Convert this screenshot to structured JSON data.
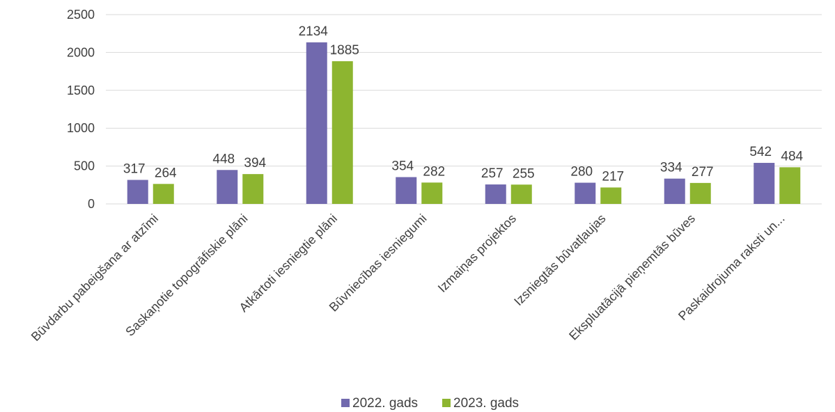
{
  "chart_data": {
    "type": "bar",
    "title": "",
    "xlabel": "",
    "ylabel": "",
    "ylim": [
      0,
      2500
    ],
    "yticks": [
      0,
      500,
      1000,
      1500,
      2000,
      2500
    ],
    "grid": true,
    "legend_position": "bottom",
    "categories": [
      "Būvdarbu pabeigšana ar atzīmi",
      "Saskaņotie topogrāfiskie plāni",
      "Atkārtoti iesniegtie plāni",
      "Būvniecības iesniegumi",
      "Izmaiņas projektos",
      "Izsniegtās būvatļaujas",
      "Ekspluatācijā pieņemtās būves",
      "Paskaidrojuma raksti un..."
    ],
    "series": [
      {
        "name": "2022. gads",
        "color": "#7169AE",
        "values": [
          317,
          448,
          2134,
          354,
          257,
          280,
          334,
          542
        ]
      },
      {
        "name": "2023. gads",
        "color": "#8DB530",
        "values": [
          264,
          394,
          1885,
          282,
          255,
          217,
          277,
          484
        ]
      }
    ]
  }
}
